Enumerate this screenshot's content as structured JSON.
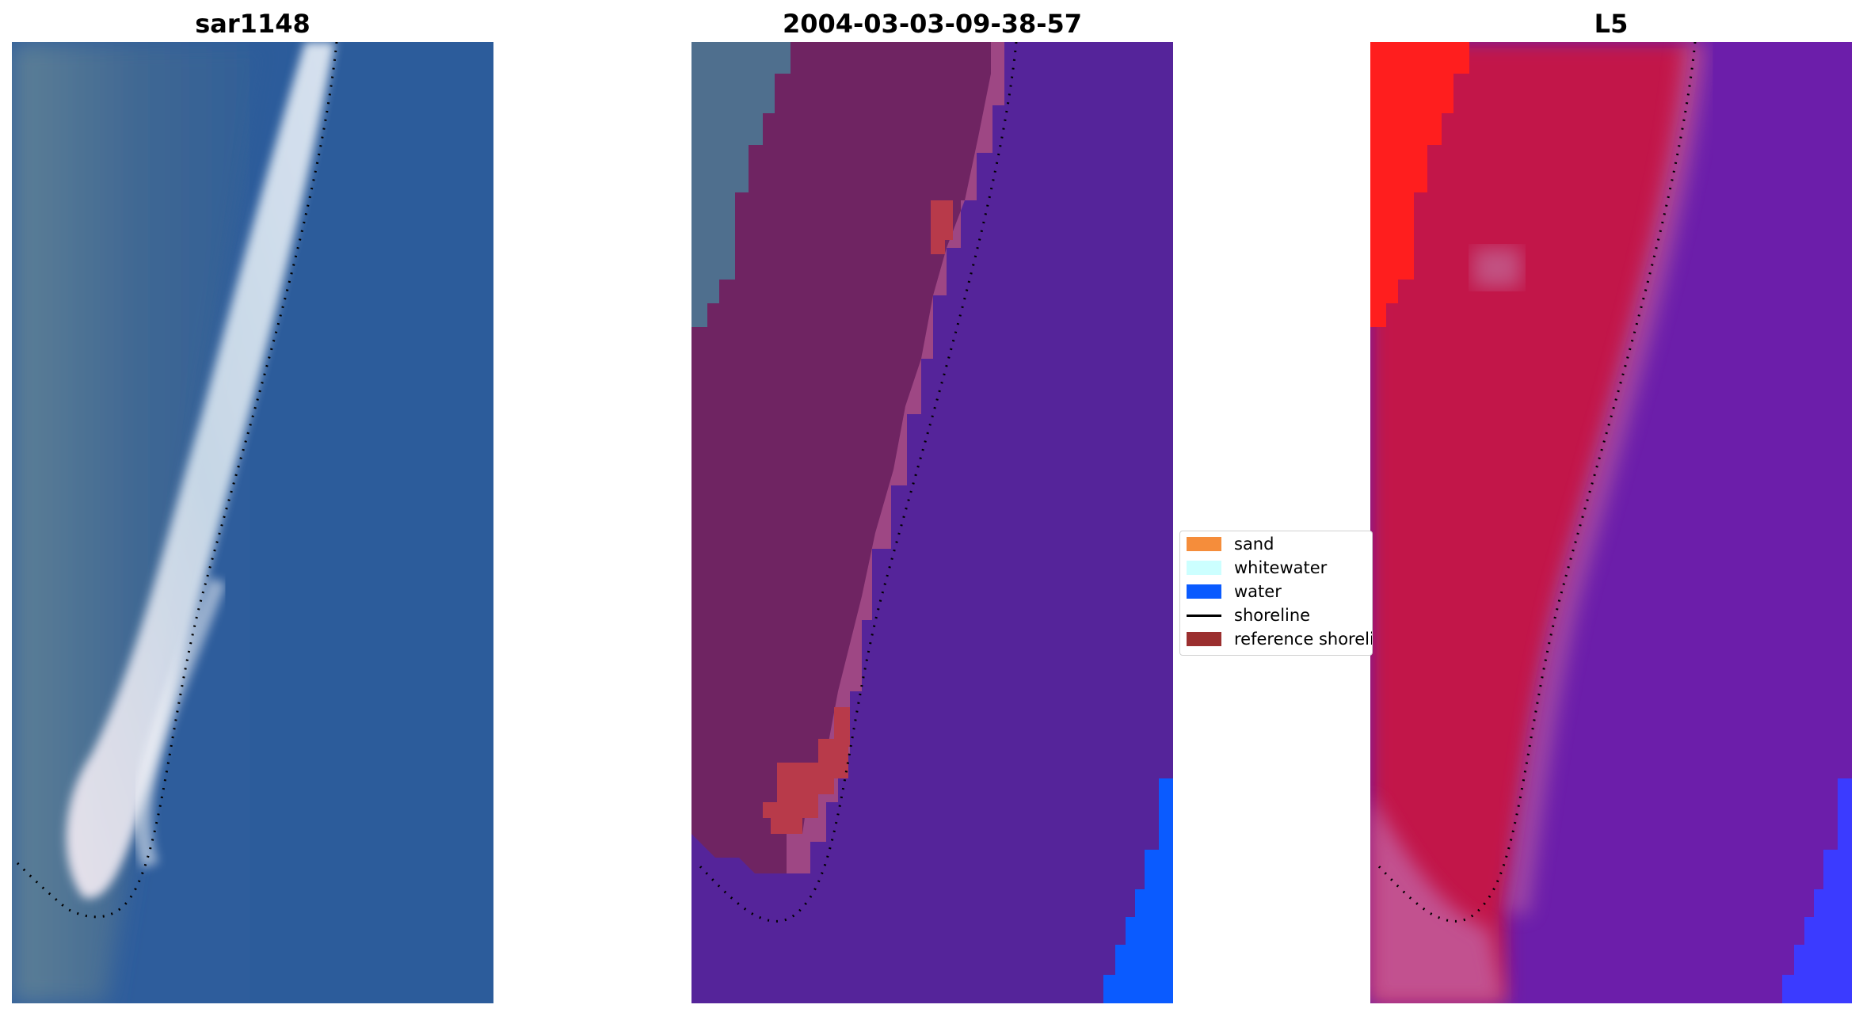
{
  "panels": [
    {
      "title": "sar1148"
    },
    {
      "title": "2004-03-03-09-38-57"
    },
    {
      "title": "L5"
    }
  ],
  "legend": {
    "items": [
      {
        "label": "sand",
        "color": "#f58d3b",
        "kind": "patch"
      },
      {
        "label": "whitewater",
        "color": "#ccffff",
        "kind": "patch"
      },
      {
        "label": "water",
        "color": "#0a5bff",
        "kind": "patch"
      },
      {
        "label": "shoreline",
        "color": "#000000",
        "kind": "line"
      },
      {
        "label": "reference shoreli",
        "color": "#9b2f2f",
        "kind": "patch"
      }
    ]
  },
  "colors": {
    "ocean_blue": "#2d5d9d",
    "classified_water": "#55249a",
    "sand_overlay": "#6e2462",
    "water_edge": "#0a5bff",
    "l5_red": "#d91e33",
    "l5_purple": "#6a1aa8"
  }
}
